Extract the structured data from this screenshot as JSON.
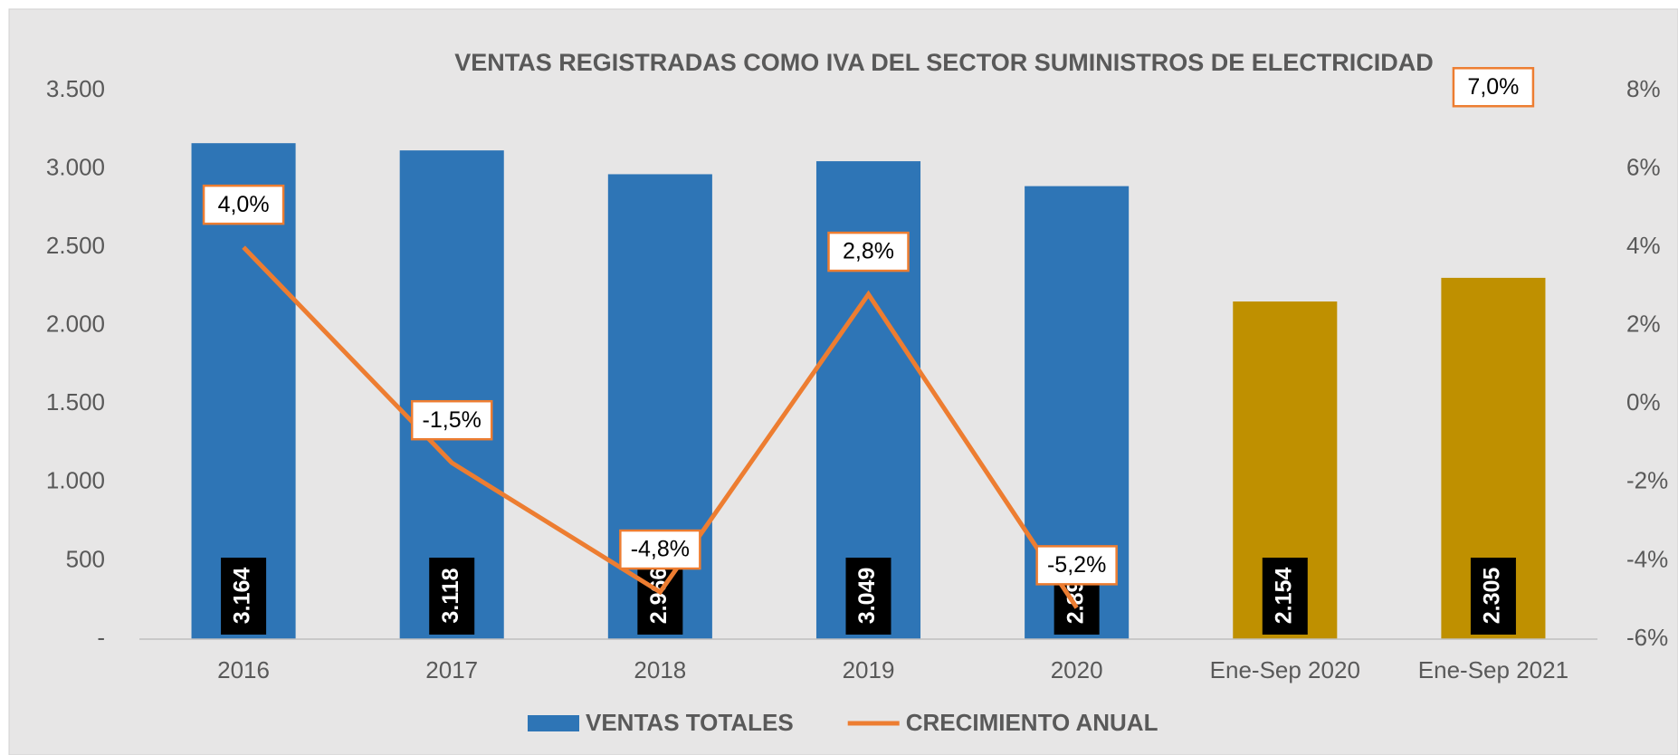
{
  "chart_data": {
    "type": "bar_line",
    "title": "VENTAS  REGISTRADAS COMO IVA DEL SECTOR SUMINISTROS DE ELECTRICIDAD",
    "categories": [
      "2016",
      "2017",
      "2018",
      "2019",
      "2020",
      "Ene-Sep 2020",
      "Ene-Sep 2021"
    ],
    "series": [
      {
        "name": "VENTAS TOTALES",
        "type": "bar",
        "color": "#2e75b6",
        "colors": [
          "#2e75b6",
          "#2e75b6",
          "#2e75b6",
          "#2e75b6",
          "#2e75b6",
          "#bf9000",
          "#bf9000"
        ],
        "values": [
          3164,
          3118,
          2966,
          3049,
          2890,
          2154,
          2305
        ],
        "value_labels": [
          "3.164",
          "3.118",
          "2.966",
          "3.049",
          "2.890",
          "2.154",
          "2.305"
        ]
      },
      {
        "name": "CRECIMIENTO ANUAL",
        "type": "line",
        "axis": "y2",
        "color": "#ed7d31",
        "values": [
          4.0,
          -1.5,
          -4.8,
          2.8,
          -5.2,
          null,
          7.0
        ],
        "value_labels": [
          "4,0%",
          "-1,5%",
          "-4,8%",
          "2,8%",
          "-5,2%",
          null,
          "7,0%"
        ]
      }
    ],
    "ylim": [
      0,
      3500
    ],
    "yticks": [
      {
        "value": 0,
        "label": "-"
      },
      500,
      {
        "value": 1000,
        "label": "1.000"
      },
      {
        "value": 1500,
        "label": "1.500"
      },
      {
        "value": 2000,
        "label": "2.000"
      },
      {
        "value": 2500,
        "label": "2.500"
      },
      {
        "value": 3000,
        "label": "3.000"
      },
      {
        "value": 3500,
        "label": "3.500"
      }
    ],
    "y2lim": [
      -6,
      8
    ],
    "y2ticks": [
      {
        "value": -6,
        "label": "-6%"
      },
      {
        "value": -4,
        "label": "-4%"
      },
      {
        "value": -2,
        "label": "-2%"
      },
      {
        "value": 0,
        "label": "0%"
      },
      {
        "value": 2,
        "label": "2%"
      },
      {
        "value": 4,
        "label": "4%"
      },
      {
        "value": 6,
        "label": "6%"
      },
      {
        "value": 8,
        "label": "8%"
      }
    ],
    "grid": false,
    "legend": "bottom"
  }
}
